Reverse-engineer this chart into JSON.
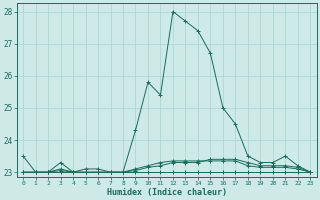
{
  "xlabel": "Humidex (Indice chaleur)",
  "x": [
    0,
    1,
    2,
    3,
    4,
    5,
    6,
    7,
    8,
    9,
    10,
    11,
    12,
    13,
    14,
    15,
    16,
    17,
    18,
    19,
    20,
    21,
    22,
    23
  ],
  "main_y": [
    23.5,
    23.0,
    23.0,
    23.3,
    23.0,
    23.1,
    23.1,
    23.0,
    23.0,
    24.3,
    25.8,
    25.4,
    28.0,
    27.7,
    27.4,
    26.7,
    25.0,
    24.5,
    23.5,
    23.3,
    23.3,
    23.5,
    23.2,
    23.0
  ],
  "flat_y1": [
    23.0,
    23.0,
    23.0,
    23.1,
    23.0,
    23.0,
    23.0,
    23.0,
    23.0,
    23.1,
    23.2,
    23.3,
    23.35,
    23.35,
    23.35,
    23.35,
    23.35,
    23.35,
    23.2,
    23.15,
    23.15,
    23.15,
    23.1,
    23.0
  ],
  "flat_y2": [
    23.0,
    23.0,
    23.0,
    23.0,
    23.0,
    23.0,
    23.0,
    23.0,
    23.0,
    23.0,
    23.0,
    23.0,
    23.0,
    23.0,
    23.0,
    23.0,
    23.0,
    23.0,
    23.0,
    23.0,
    23.0,
    23.0,
    23.0,
    23.0
  ],
  "flat_y3": [
    23.0,
    23.0,
    23.0,
    23.05,
    23.0,
    23.0,
    23.0,
    23.0,
    23.0,
    23.05,
    23.15,
    23.2,
    23.3,
    23.3,
    23.3,
    23.4,
    23.4,
    23.4,
    23.3,
    23.2,
    23.2,
    23.2,
    23.15,
    23.0
  ],
  "line_color": "#1a6b5a",
  "bg_color": "#ceeae6",
  "grid_color": "#aad4cf",
  "ylim": [
    22.85,
    28.25
  ],
  "xlim": [
    -0.5,
    23.5
  ],
  "yticks": [
    23,
    24,
    25,
    26,
    27,
    28
  ],
  "xticks": [
    0,
    1,
    2,
    3,
    4,
    5,
    6,
    7,
    8,
    9,
    10,
    11,
    12,
    13,
    14,
    15,
    16,
    17,
    18,
    19,
    20,
    21,
    22,
    23
  ]
}
